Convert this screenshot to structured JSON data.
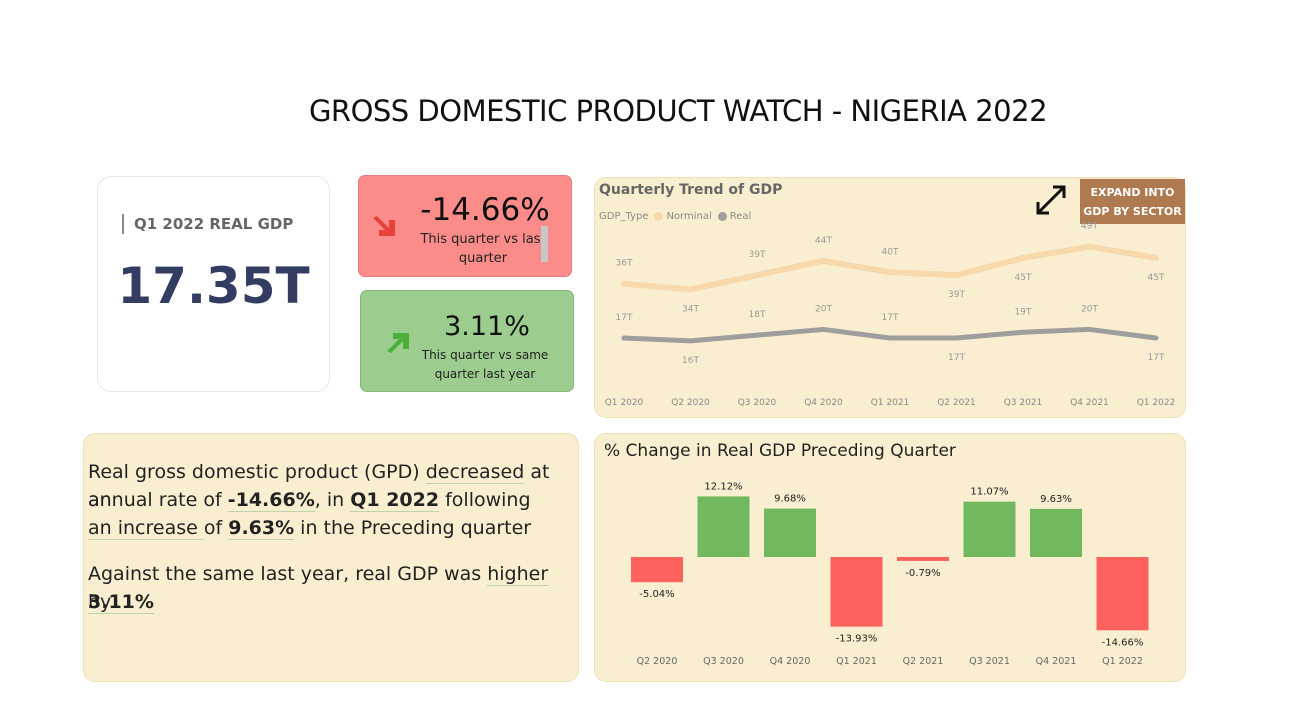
{
  "title": "GROSS DOMESTIC PRODUCT WATCH - NIGERIA 2022",
  "kpi": {
    "label": "Q1 2022 REAL GDP",
    "value": "17.35T"
  },
  "change_cards": {
    "quarter": {
      "value": "-14.66%",
      "desc_line1": "This quarter vs last",
      "desc_line2": "quarter",
      "color": "#fc8c8a",
      "icon": "arrow-down-right-icon"
    },
    "year": {
      "value": "3.11%",
      "desc_line1": "This quarter vs same",
      "desc_line2": "quarter last year",
      "color": "#9ccc8e",
      "icon": "arrow-up-right-icon"
    }
  },
  "trend": {
    "title": "Quarterly Trend of GDP",
    "legend_label": "GDP_Type",
    "expand_line1": "EXPAND INTO",
    "expand_line2": "GDP BY SECTOR",
    "chart_data": {
      "type": "line",
      "title": "Quarterly Trend of GDP",
      "x": [
        "Q1 2020",
        "Q2 2020",
        "Q3 2020",
        "Q4 2020",
        "Q1 2021",
        "Q2 2021",
        "Q3 2021",
        "Q4 2021",
        "Q1 2022"
      ],
      "series": [
        {
          "name": "Norminal",
          "color": "#f7d9ac",
          "values": [
            36,
            34,
            39,
            44,
            40,
            39,
            45,
            49,
            45
          ],
          "labels": [
            "36T",
            "34T",
            "39T",
            "44T",
            "40T",
            "39T",
            "45T",
            "49T",
            "45T"
          ]
        },
        {
          "name": "Real",
          "color": "#9e9e9e",
          "values": [
            17,
            16,
            18,
            20,
            17,
            17,
            19,
            20,
            17
          ],
          "labels": [
            "17T",
            "16T",
            "18T",
            "20T",
            "17T",
            "17T",
            "19T",
            "20T",
            "17T"
          ]
        }
      ],
      "ylim": [
        10,
        52
      ],
      "label_positions": [
        [
          "above",
          "below",
          "above",
          "above",
          "above",
          "below",
          "below",
          "above",
          "below"
        ],
        [
          "above",
          "below",
          "above",
          "above",
          "above",
          "below",
          "above",
          "above",
          "below"
        ]
      ]
    }
  },
  "narrative": {
    "l1_a": " Real gross domestic product (GPD) ",
    "l1_b": "decreased",
    "l1_c": " at an",
    "l2_a": "annual rate of ",
    "l2_b": "-14.66%",
    "l2_c": ", in ",
    "l2_d": "Q1 2022",
    "l2_e": " following",
    "l3_a": "an increase ",
    "l3_b": " of ",
    "l3_c": "9.63%",
    "l3_d": " in the Preceding quarter",
    "l4_a": "Against the same  last year, real GDP was ",
    "l4_b": "higher",
    "l4_c": " by",
    "l5": "3.11%"
  },
  "pct_chart": {
    "title": "% Change in Real GDP Preceding Quarter",
    "chart_data": {
      "type": "bar",
      "title": "% Change in Real GDP Preceding Quarter",
      "categories": [
        "Q2 2020",
        "Q3 2020",
        "Q4 2020",
        "Q1 2021",
        "Q2 2021",
        "Q3 2021",
        "Q4 2021",
        "Q1 2022"
      ],
      "values": [
        -5.04,
        12.12,
        9.68,
        -13.93,
        -0.79,
        11.07,
        9.63,
        -14.66
      ],
      "labels": [
        "-5.04%",
        "12.12%",
        "9.68%",
        "-13.93%",
        "-0.79%",
        "11.07%",
        "9.63%",
        "-14.66%"
      ],
      "positive_color": "#72b85f",
      "negative_color": "#fd625e"
    }
  }
}
